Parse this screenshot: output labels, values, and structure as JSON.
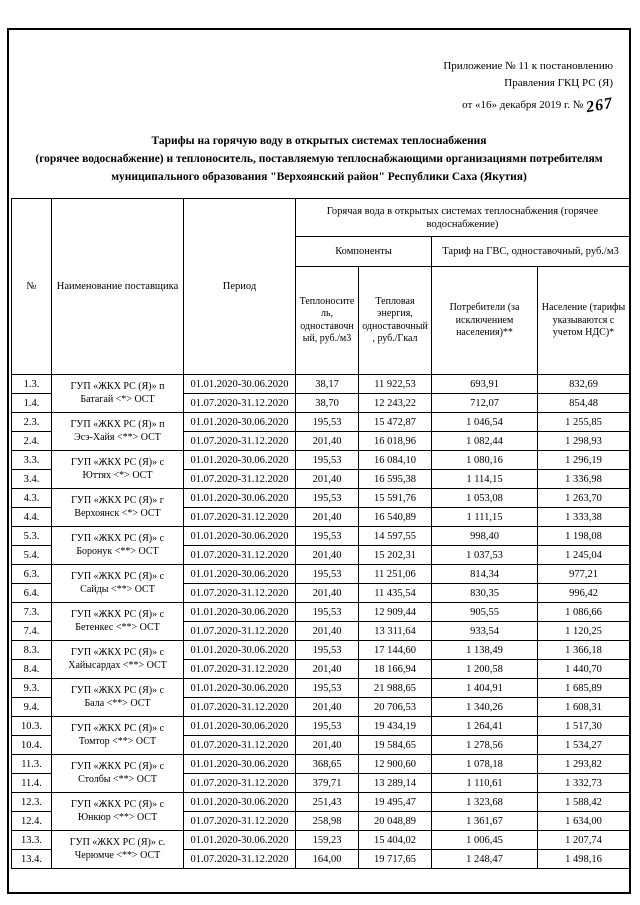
{
  "appendix": {
    "line1": "Приложение № 11 к постановлению",
    "line2": "Правления ГКЦ РС (Я)",
    "line3_prefix": "от «16» декабря  2019 г. №",
    "handwritten_number": "267"
  },
  "title": {
    "line1": "Тарифы на горячую воду в открытых системах теплоснабжения",
    "line2": "(горячее водоснабжение) и теплоноситель, поставляемую теплоснабжающими организациями потребителям",
    "line3": "муниципального образования \"Верхоянский район\"  Республики Саха (Якутия)"
  },
  "table": {
    "headers": {
      "num": "№",
      "supplier": "Наименование поставщика",
      "period": "Период",
      "group_top": "Горячая вода в открытых системах теплоснабжения (горячее водоснабжение)",
      "components": "Компоненты",
      "gvs_tariff": "Тариф на ГВС, одноставочный, руб./м3",
      "col_heat_carrier": "Теплоноситель, одноставочный, руб./м3",
      "col_heat_energy": "Тепловая энергия, одноставочный, руб./Гкал",
      "col_consumers": "Потребители (за исключением населения)**",
      "col_population": "Население (тарифы указываются с учетом НДС)*"
    },
    "groups": [
      {
        "nums": [
          "1.3.",
          "1.4."
        ],
        "supplier": [
          "ГУП «ЖКХ РС (Я)» п",
          "Батагай <*> ОСТ"
        ],
        "rows": [
          {
            "period": "01.01.2020-30.06.2020",
            "heat_carrier": "38,17",
            "heat_energy": "11 922,53",
            "consumers": "693,91",
            "population": "832,69"
          },
          {
            "period": "01.07.2020-31.12.2020",
            "heat_carrier": "38,70",
            "heat_energy": "12 243,22",
            "consumers": "712,07",
            "population": "854,48"
          }
        ]
      },
      {
        "nums": [
          "2.3.",
          "2.4."
        ],
        "supplier": [
          "ГУП «ЖКХ РС (Я)» п",
          "Эсэ-Хайя <**> ОСТ"
        ],
        "rows": [
          {
            "period": "01.01.2020-30.06.2020",
            "heat_carrier": "195,53",
            "heat_energy": "15 472,87",
            "consumers": "1 046,54",
            "population": "1 255,85"
          },
          {
            "period": "01.07.2020-31.12.2020",
            "heat_carrier": "201,40",
            "heat_energy": "16 018,96",
            "consumers": "1 082,44",
            "population": "1 298,93"
          }
        ]
      },
      {
        "nums": [
          "3.3.",
          "3.4."
        ],
        "supplier": [
          "ГУП «ЖКХ РС (Я)» с",
          "Юттях <*> ОСТ"
        ],
        "rows": [
          {
            "period": "01.01.2020-30.06.2020",
            "heat_carrier": "195,53",
            "heat_energy": "16 084,10",
            "consumers": "1 080,16",
            "population": "1 296,19"
          },
          {
            "period": "01.07.2020-31.12.2020",
            "heat_carrier": "201,40",
            "heat_energy": "16 595,38",
            "consumers": "1 114,15",
            "population": "1 336,98"
          }
        ]
      },
      {
        "nums": [
          "4.3.",
          "4.4."
        ],
        "supplier": [
          "ГУП «ЖКХ РС (Я)» г",
          "Верхоянск <*> ОСТ"
        ],
        "rows": [
          {
            "period": "01.01.2020-30.06.2020",
            "heat_carrier": "195,53",
            "heat_energy": "15 591,76",
            "consumers": "1 053,08",
            "population": "1 263,70"
          },
          {
            "period": "01.07.2020-31.12.2020",
            "heat_carrier": "201,40",
            "heat_energy": "16 540,89",
            "consumers": "1 111,15",
            "population": "1 333,38"
          }
        ]
      },
      {
        "nums": [
          "5.3.",
          "5.4."
        ],
        "supplier": [
          "ГУП «ЖКХ РС (Я)» с",
          "Боронук <**> ОСТ"
        ],
        "rows": [
          {
            "period": "01.01.2020-30.06.2020",
            "heat_carrier": "195,53",
            "heat_energy": "14 597,55",
            "consumers": "998,40",
            "population": "1 198,08"
          },
          {
            "period": "01.07.2020-31.12.2020",
            "heat_carrier": "201,40",
            "heat_energy": "15 202,31",
            "consumers": "1 037,53",
            "population": "1 245,04"
          }
        ]
      },
      {
        "nums": [
          "6.3.",
          "6.4."
        ],
        "supplier": [
          "ГУП «ЖКХ РС (Я)» с",
          "Сайды <**> ОСТ"
        ],
        "rows": [
          {
            "period": "01.01.2020-30.06.2020",
            "heat_carrier": "195,53",
            "heat_energy": "11 251,06",
            "consumers": "814,34",
            "population": "977,21"
          },
          {
            "period": "01.07.2020-31.12.2020",
            "heat_carrier": "201,40",
            "heat_energy": "11 435,54",
            "consumers": "830,35",
            "population": "996,42"
          }
        ]
      },
      {
        "nums": [
          "7.3.",
          "7.4."
        ],
        "supplier": [
          "ГУП «ЖКХ РС (Я)» с",
          "Бетенкес <**> ОСТ"
        ],
        "rows": [
          {
            "period": "01.01.2020-30.06.2020",
            "heat_carrier": "195,53",
            "heat_energy": "12 909,44",
            "consumers": "905,55",
            "population": "1 086,66"
          },
          {
            "period": "01.07.2020-31.12.2020",
            "heat_carrier": "201,40",
            "heat_energy": "13 311,64",
            "consumers": "933,54",
            "population": "1 120,25"
          }
        ]
      },
      {
        "nums": [
          "8.3.",
          "8.4."
        ],
        "supplier": [
          "ГУП «ЖКХ РС (Я)» с",
          "Хайысардах <**> ОСТ"
        ],
        "rows": [
          {
            "period": "01.01.2020-30.06.2020",
            "heat_carrier": "195,53",
            "heat_energy": "17 144,60",
            "consumers": "1 138,49",
            "population": "1 366,18"
          },
          {
            "period": "01.07.2020-31.12.2020",
            "heat_carrier": "201,40",
            "heat_energy": "18 166,94",
            "consumers": "1 200,58",
            "population": "1 440,70"
          }
        ]
      },
      {
        "nums": [
          "9.3.",
          "9.4."
        ],
        "supplier": [
          "ГУП «ЖКХ РС (Я)» с",
          "Бала <**> ОСТ"
        ],
        "rows": [
          {
            "period": "01.01.2020-30.06.2020",
            "heat_carrier": "195,53",
            "heat_energy": "21 988,65",
            "consumers": "1 404,91",
            "population": "1 685,89"
          },
          {
            "period": "01.07.2020-31.12.2020",
            "heat_carrier": "201,40",
            "heat_energy": "20 706,53",
            "consumers": "1 340,26",
            "population": "1 608,31"
          }
        ]
      },
      {
        "nums": [
          "10.3.",
          "10.4."
        ],
        "supplier": [
          "ГУП «ЖКХ РС (Я)» с",
          "Томтор <**> ОСТ"
        ],
        "rows": [
          {
            "period": "01.01.2020-30.06.2020",
            "heat_carrier": "195,53",
            "heat_energy": "19 434,19",
            "consumers": "1 264,41",
            "population": "1 517,30"
          },
          {
            "period": "01.07.2020-31.12.2020",
            "heat_carrier": "201,40",
            "heat_energy": "19 584,65",
            "consumers": "1 278,56",
            "population": "1 534,27"
          }
        ]
      },
      {
        "nums": [
          "11.3.",
          "11.4."
        ],
        "supplier": [
          "ГУП «ЖКХ РС (Я)» с",
          "Столбы <**> ОСТ"
        ],
        "rows": [
          {
            "period": "01.01.2020-30.06.2020",
            "heat_carrier": "368,65",
            "heat_energy": "12 900,60",
            "consumers": "1 078,18",
            "population": "1 293,82"
          },
          {
            "period": "01.07.2020-31.12.2020",
            "heat_carrier": "379,71",
            "heat_energy": "13 289,14",
            "consumers": "1 110,61",
            "population": "1 332,73"
          }
        ]
      },
      {
        "nums": [
          "12.3.",
          "12.4."
        ],
        "supplier": [
          "ГУП «ЖКХ РС (Я)» с",
          "Юнкюр <**> ОСТ"
        ],
        "rows": [
          {
            "period": "01.01.2020-30.06.2020",
            "heat_carrier": "251,43",
            "heat_energy": "19 495,47",
            "consumers": "1 323,68",
            "population": "1 588,42"
          },
          {
            "period": "01.07.2020-31.12.2020",
            "heat_carrier": "258,98",
            "heat_energy": "20 048,89",
            "consumers": "1 361,67",
            "population": "1 634,00"
          }
        ]
      },
      {
        "nums": [
          "13.3.",
          "13.4."
        ],
        "supplier": [
          "ГУП «ЖКХ РС (Я)» с.",
          "Черюмче <**> ОСТ"
        ],
        "rows": [
          {
            "period": "01.01.2020-30.06.2020",
            "heat_carrier": "159,23",
            "heat_energy": "15 404,02",
            "consumers": "1 006,45",
            "population": "1 207,74"
          },
          {
            "period": "01.07.2020-31.12.2020",
            "heat_carrier": "164,00",
            "heat_energy": "19 717,65",
            "consumers": "1 248,47",
            "population": "1 498,16"
          }
        ]
      }
    ]
  }
}
